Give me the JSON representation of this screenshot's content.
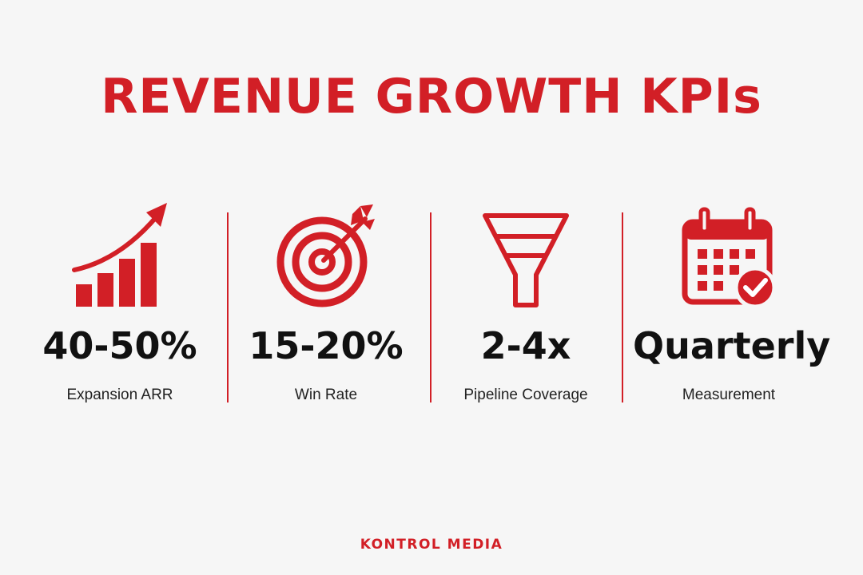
{
  "title": "REVENUE GROWTH KPIs",
  "accent_color": "#d21f26",
  "kpis": [
    {
      "icon": "growth-chart-icon",
      "value": "40-50%",
      "label": "Expansion ARR"
    },
    {
      "icon": "target-icon",
      "value": "15-20%",
      "label": "Win Rate"
    },
    {
      "icon": "funnel-icon",
      "value": "2-4x",
      "label": "Pipeline Coverage"
    },
    {
      "icon": "calendar-check-icon",
      "value": "Quarterly",
      "label": "Measurement"
    }
  ],
  "brand": "KONTROL MEDIA"
}
